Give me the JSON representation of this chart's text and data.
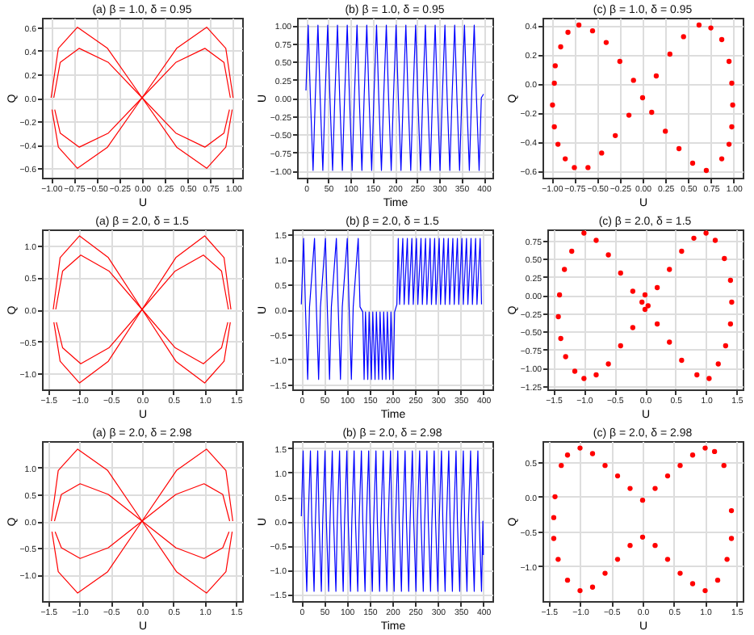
{
  "chart_data": [
    {
      "type": "line",
      "title": "(a) β = 1.0, δ = 0.95",
      "xlabel": "U",
      "ylabel": "Q",
      "grid": true,
      "xlim": [
        -1.1,
        1.1
      ],
      "ylim": [
        -0.68,
        0.68
      ],
      "xticks": [
        {
          "value": -1,
          "label": "−1.00"
        },
        {
          "value": -0.75,
          "label": "−0.75"
        },
        {
          "value": -0.5,
          "label": "−0.50"
        },
        {
          "value": -0.25,
          "label": "−0.25"
        },
        {
          "value": 0,
          "label": "0.00"
        },
        {
          "value": 0.25,
          "label": "0.25"
        },
        {
          "value": 0.5,
          "label": "0.50"
        },
        {
          "value": 0.75,
          "label": "0.75"
        },
        {
          "value": 1,
          "label": "1.00"
        }
      ],
      "yticks": [
        {
          "value": -0.6,
          "label": "−0.6"
        },
        {
          "value": -0.4,
          "label": "−0.4"
        },
        {
          "value": -0.2,
          "label": "−0.2"
        },
        {
          "value": 0,
          "label": "0.0"
        },
        0.2,
        0.4,
        0.6
      ],
      "series": [
        {
          "color": "#ff0000",
          "x": [
            -1.0,
            -0.92,
            -0.71,
            -0.38,
            0,
            0.38,
            0.71,
            0.92,
            1.0
          ],
          "values": [
            0,
            0.42,
            0.6,
            0.42,
            0,
            0.42,
            0.6,
            0.42,
            0
          ]
        },
        {
          "color": "#ff0000",
          "x": [
            -0.99,
            -0.92,
            -0.71,
            -0.38,
            0,
            0.38,
            0.71,
            0.92,
            0.99
          ],
          "values": [
            -0.1,
            -0.42,
            -0.6,
            -0.42,
            0,
            -0.42,
            -0.6,
            -0.42,
            -0.1
          ]
        },
        {
          "color": "#ff0000",
          "x": [
            -0.97,
            -0.9,
            -0.69,
            -0.37,
            0,
            0.37,
            0.69,
            0.9,
            0.97
          ],
          "values": [
            0,
            0.3,
            0.42,
            0.3,
            0,
            0.3,
            0.42,
            0.3,
            0
          ]
        },
        {
          "color": "#ff0000",
          "x": [
            -0.96,
            -0.9,
            -0.69,
            -0.37,
            0,
            0.37,
            0.69,
            0.9,
            0.96
          ],
          "values": [
            -0.1,
            -0.3,
            -0.42,
            -0.3,
            0,
            -0.3,
            -0.42,
            -0.3,
            -0.1
          ]
        }
      ]
    },
    {
      "type": "line",
      "title": "(b) β = 1.0, δ = 0.95",
      "xlabel": "Time",
      "ylabel": "U",
      "grid": true,
      "xlim": [
        -20,
        420
      ],
      "ylim": [
        -1.1,
        1.1
      ],
      "xticks": [
        0,
        50,
        100,
        150,
        200,
        250,
        300,
        350,
        400
      ],
      "yticks": [
        {
          "value": -1,
          "label": "−1.00"
        },
        {
          "value": -0.75,
          "label": "−0.75"
        },
        {
          "value": -0.5,
          "label": "−0.50"
        },
        {
          "value": -0.25,
          "label": "−0.25"
        },
        {
          "value": 0,
          "label": "0.00"
        },
        {
          "value": 0.25,
          "label": "0.25"
        },
        {
          "value": 0.5,
          "label": "0.50"
        },
        {
          "value": 0.75,
          "label": "0.75"
        },
        {
          "value": 1,
          "label": "1.00"
        }
      ],
      "series": [
        {
          "color": "#0000ff",
          "x": [
            0,
            5,
            10,
            16,
            21,
            27,
            32,
            38,
            43,
            49,
            54,
            60,
            65,
            71,
            76,
            82,
            87,
            93,
            98,
            104,
            109,
            115,
            120,
            126,
            131,
            137,
            142,
            148,
            153,
            159,
            164,
            170,
            175,
            181,
            186,
            192,
            197,
            203,
            208,
            214,
            219,
            225,
            230,
            236,
            241,
            247,
            252,
            258,
            263,
            269,
            274,
            280,
            285,
            291,
            296,
            302,
            307,
            313,
            318,
            324,
            329,
            335,
            340,
            346,
            351,
            357,
            362,
            368,
            373,
            379,
            384,
            390,
            395,
            400
          ],
          "values": [
            0.1,
            1,
            0,
            -1,
            0,
            1,
            0,
            -1,
            0,
            1,
            0,
            -1,
            0,
            1,
            0,
            -1,
            0,
            1,
            0,
            -1,
            0,
            1,
            0,
            -1,
            0,
            1,
            0,
            -1,
            0,
            1,
            0,
            -1,
            0,
            1,
            0,
            -1,
            0,
            1,
            0,
            -1,
            0,
            1,
            0,
            -1,
            0,
            1,
            0,
            -1,
            0,
            1,
            0,
            -1,
            0,
            1,
            0,
            -1,
            0,
            1,
            0,
            -1,
            0,
            1,
            0,
            -1,
            0,
            1,
            0,
            -1,
            0,
            1,
            0,
            -1,
            0,
            0.05
          ]
        }
      ]
    },
    {
      "type": "scatter",
      "title": "(c) β = 1.0, δ = 0.95",
      "xlabel": "U",
      "ylabel": "Q",
      "grid": true,
      "xlim": [
        -1.1,
        1.1
      ],
      "ylim": [
        -0.65,
        0.45
      ],
      "xticks": [
        {
          "value": -1,
          "label": "−1.00"
        },
        {
          "value": -0.75,
          "label": "−0.75"
        },
        {
          "value": -0.5,
          "label": "−0.50"
        },
        {
          "value": -0.25,
          "label": "−0.25"
        },
        {
          "value": 0,
          "label": "0.00"
        },
        {
          "value": 0.25,
          "label": "0.25"
        },
        {
          "value": 0.5,
          "label": "0.50"
        },
        {
          "value": 0.75,
          "label": "0.75"
        },
        {
          "value": 1,
          "label": "1.00"
        }
      ],
      "yticks": [
        {
          "value": -0.6,
          "label": "−0.6"
        },
        {
          "value": -0.4,
          "label": "−0.4"
        },
        {
          "value": -0.2,
          "label": "−0.2"
        },
        {
          "value": 0,
          "label": "0.0"
        },
        0.2,
        0.4
      ],
      "series": [
        {
          "color": "#ff0000",
          "x": [
            -0.97,
            -0.99,
            -0.97,
            -0.93,
            -0.85,
            -0.75,
            -0.6,
            -0.45,
            -0.3,
            -0.15,
            0,
            0.15,
            0.3,
            0.45,
            0.62,
            0.75,
            0.87,
            0.95,
            0.98,
            0.99,
            0.98,
            0.95,
            0.87,
            0.7,
            0.55,
            0.4,
            0.25,
            0.1,
            -0.1,
            -0.25,
            -0.4,
            -0.55,
            -0.7,
            -0.82,
            -0.9,
            -0.96
          ],
          "values": [
            0,
            -0.15,
            -0.3,
            -0.42,
            -0.52,
            -0.58,
            -0.58,
            -0.48,
            -0.36,
            -0.22,
            -0.1,
            0.05,
            0.2,
            0.32,
            0.4,
            0.38,
            0.3,
            0.15,
            0,
            -0.15,
            -0.3,
            -0.42,
            -0.52,
            -0.6,
            -0.55,
            -0.45,
            -0.33,
            -0.2,
            0.02,
            0.15,
            0.28,
            0.36,
            0.4,
            0.35,
            0.25,
            0.12
          ]
        }
      ]
    },
    {
      "type": "line",
      "title": "(a) β = 2.0, δ = 1.5",
      "xlabel": "U",
      "ylabel": "Q",
      "grid": true,
      "xlim": [
        -1.6,
        1.6
      ],
      "ylim": [
        -1.25,
        1.25
      ],
      "xticks": [
        {
          "value": -1.5,
          "label": "−1.5"
        },
        {
          "value": -1,
          "label": "−1.0"
        },
        {
          "value": -0.5,
          "label": "−0.5"
        },
        {
          "value": 0,
          "label": "0.0"
        },
        0.5,
        {
          "value": 1,
          "label": "1.0"
        },
        1.5
      ],
      "yticks": [
        {
          "value": -1,
          "label": "−1.0"
        },
        {
          "value": -0.5,
          "label": "−0.5"
        },
        {
          "value": 0,
          "label": "0.0"
        },
        0.5,
        {
          "value": 1,
          "label": "1.0"
        }
      ],
      "series": [
        {
          "color": "#ff0000",
          "x": [
            -1.42,
            -1.31,
            -1.0,
            -0.54,
            0,
            0.54,
            1.0,
            1.31,
            1.42
          ],
          "values": [
            0,
            0.81,
            1.15,
            0.81,
            0,
            0.81,
            1.15,
            0.81,
            0
          ]
        },
        {
          "color": "#ff0000",
          "x": [
            -1.41,
            -1.31,
            -1.0,
            -0.54,
            0,
            0.54,
            1.0,
            1.31,
            1.41
          ],
          "values": [
            -0.2,
            -0.81,
            -1.15,
            -0.81,
            0,
            -0.81,
            -1.15,
            -0.81,
            -0.2
          ]
        },
        {
          "color": "#ff0000",
          "x": [
            -1.38,
            -1.27,
            -0.98,
            -0.53,
            0,
            0.53,
            0.98,
            1.27,
            1.38
          ],
          "values": [
            0,
            0.6,
            0.85,
            0.6,
            0,
            0.6,
            0.85,
            0.6,
            0
          ]
        },
        {
          "color": "#ff0000",
          "x": [
            -1.37,
            -1.27,
            -0.98,
            -0.53,
            0,
            0.53,
            0.98,
            1.27,
            1.37
          ],
          "values": [
            -0.2,
            -0.6,
            -0.85,
            -0.6,
            0,
            -0.6,
            -0.85,
            -0.6,
            -0.2
          ]
        }
      ]
    },
    {
      "type": "line",
      "title": "(b) β = 2.0, δ = 1.5",
      "xlabel": "Time",
      "ylabel": "U",
      "grid": true,
      "xlim": [
        -20,
        420
      ],
      "ylim": [
        -1.6,
        1.6
      ],
      "xticks": [
        0,
        50,
        100,
        150,
        200,
        250,
        300,
        350,
        400
      ],
      "yticks": [
        {
          "value": -1.5,
          "label": "−1.5"
        },
        {
          "value": -1,
          "label": "−1.0"
        },
        {
          "value": -0.5,
          "label": "−0.5"
        },
        {
          "value": 0,
          "label": "0.0"
        },
        0.5,
        {
          "value": 1,
          "label": "1.0"
        },
        1.5
      ],
      "series": [
        {
          "color": "#0000ff",
          "x": [
            0,
            5,
            9,
            14,
            18,
            29,
            33,
            38,
            42,
            53,
            57,
            62,
            66,
            77,
            81,
            86,
            90,
            101,
            105,
            110,
            114,
            125,
            129,
            135,
            138,
            141,
            146,
            149,
            154,
            157,
            162,
            165,
            170,
            173,
            178,
            181,
            186,
            189,
            194,
            197,
            202,
            205,
            210,
            213,
            216,
            223,
            226,
            233,
            236,
            243,
            246,
            253,
            256,
            263,
            266,
            273,
            276,
            283,
            286,
            293,
            296,
            303,
            306,
            313,
            316,
            323,
            326,
            333,
            336,
            343,
            346,
            353,
            356,
            363,
            366,
            373,
            376,
            383,
            386,
            393,
            396
          ],
          "values": [
            0.1,
            1.42,
            0.05,
            -1.4,
            0.05,
            1.42,
            0.05,
            -1.4,
            0.05,
            1.42,
            0.05,
            -1.4,
            0.05,
            1.42,
            0.05,
            -1.4,
            0.05,
            1.42,
            0.05,
            -1.4,
            0.05,
            1.42,
            0.05,
            -0.05,
            -1.4,
            -0.05,
            -1.4,
            -0.05,
            -1.4,
            -0.05,
            -1.4,
            -0.05,
            -1.4,
            -0.05,
            -1.4,
            -0.05,
            -1.4,
            -0.05,
            -1.4,
            -0.05,
            -1.4,
            -0.05,
            0.1,
            1.42,
            0.1,
            1.42,
            0.1,
            1.42,
            0.1,
            1.42,
            0.1,
            1.42,
            0.1,
            1.42,
            0.1,
            1.42,
            0.1,
            1.42,
            0.1,
            1.42,
            0.1,
            1.42,
            0.1,
            1.42,
            0.1,
            1.42,
            0.1,
            1.42,
            0.1,
            1.42,
            0.1,
            1.42,
            0.1,
            1.42,
            0.1,
            1.42,
            0.1,
            1.42,
            0.1,
            1.42,
            0.1
          ]
        }
      ]
    },
    {
      "type": "scatter",
      "title": "(c) β = 2.0, δ = 1.5",
      "xlabel": "U",
      "ylabel": "Q",
      "grid": true,
      "xlim": [
        -1.6,
        1.6
      ],
      "ylim": [
        -1.3,
        0.9
      ],
      "xticks": [
        {
          "value": -1.5,
          "label": "−1.5"
        },
        {
          "value": -1,
          "label": "−1.0"
        },
        {
          "value": -0.5,
          "label": "−0.5"
        },
        {
          "value": 0,
          "label": "0.0"
        },
        0.5,
        {
          "value": 1,
          "label": "1.0"
        },
        1.5
      ],
      "yticks": [
        {
          "value": -1.25,
          "label": "−1.25"
        },
        {
          "value": -1,
          "label": "−1.00"
        },
        {
          "value": -0.75,
          "label": "−0.75"
        },
        {
          "value": -0.5,
          "label": "−0.50"
        },
        {
          "value": -0.25,
          "label": "−0.25"
        },
        {
          "value": 0,
          "label": "0.00"
        },
        0.25,
        {
          "value": 0.5,
          "label": "0.50"
        },
        0.75
      ],
      "series": [
        {
          "color": "#ff0000",
          "x": [
            -1.4,
            -1.42,
            -1.38,
            -1.3,
            -1.15,
            -1.0,
            -0.8,
            -0.6,
            -0.4,
            -0.2,
            0,
            0.2,
            0.4,
            0.6,
            0.8,
            1.0,
            1.15,
            1.3,
            1.4,
            1.42,
            1.4,
            1.32,
            1.2,
            1.05,
            0.85,
            0.6,
            0.4,
            0.2,
            -0.2,
            -0.4,
            -0.6,
            -0.8,
            -1.0,
            -1.2,
            -1.32,
            -0.05,
            0.05,
            0
          ],
          "values": [
            0,
            -0.3,
            -0.6,
            -0.85,
            -1.05,
            -1.15,
            -1.1,
            -0.95,
            -0.7,
            -0.45,
            -0.2,
            0.1,
            0.35,
            0.6,
            0.78,
            0.85,
            0.75,
            0.5,
            0.2,
            -0.1,
            -0.4,
            -0.7,
            -0.95,
            -1.15,
            -1.1,
            -0.9,
            -0.65,
            -0.4,
            0.05,
            0.3,
            0.55,
            0.75,
            0.85,
            0.6,
            0.35,
            -0.1,
            -0.15,
            0
          ]
        }
      ]
    },
    {
      "type": "line",
      "title": "(a) β = 2.0, δ = 2.98",
      "xlabel": "U",
      "ylabel": "Q",
      "grid": true,
      "xlim": [
        -1.6,
        1.6
      ],
      "ylim": [
        -1.5,
        1.5
      ],
      "xticks": [
        {
          "value": -1.5,
          "label": "−1.5"
        },
        {
          "value": -1,
          "label": "−1.0"
        },
        {
          "value": -0.5,
          "label": "−0.5"
        },
        {
          "value": 0,
          "label": "0.0"
        },
        0.5,
        {
          "value": 1,
          "label": "1.0"
        },
        1.5
      ],
      "yticks": [
        {
          "value": -1,
          "label": "−1.0"
        },
        {
          "value": -0.5,
          "label": "−0.5"
        },
        {
          "value": 0,
          "label": "0.0"
        },
        0.5,
        {
          "value": 1,
          "label": "1.0"
        }
      ],
      "series": [
        {
          "color": "#ff0000",
          "x": [
            -1.45,
            -1.34,
            -1.03,
            -0.55,
            0,
            0.55,
            1.03,
            1.34,
            1.45
          ],
          "values": [
            0,
            0.95,
            1.35,
            0.95,
            0,
            0.95,
            1.35,
            0.95,
            0
          ]
        },
        {
          "color": "#ff0000",
          "x": [
            -1.44,
            -1.34,
            -1.03,
            -0.55,
            0,
            0.55,
            1.03,
            1.34,
            1.44
          ],
          "values": [
            -0.2,
            -0.95,
            -1.35,
            -0.95,
            0,
            -0.95,
            -1.35,
            -0.95,
            -0.2
          ]
        },
        {
          "color": "#ff0000",
          "x": [
            -1.4,
            -1.29,
            -0.99,
            -0.54,
            0,
            0.54,
            0.99,
            1.29,
            1.4
          ],
          "values": [
            0,
            0.5,
            0.7,
            0.5,
            0,
            0.5,
            0.7,
            0.5,
            0
          ]
        },
        {
          "color": "#ff0000",
          "x": [
            -1.39,
            -1.29,
            -0.99,
            -0.54,
            0,
            0.54,
            0.99,
            1.29,
            1.39
          ],
          "values": [
            -0.2,
            -0.5,
            -0.7,
            -0.5,
            0,
            -0.5,
            -0.7,
            -0.5,
            -0.2
          ]
        }
      ]
    },
    {
      "type": "line",
      "title": "(b) β = 2.0, δ = 2.98",
      "xlabel": "Time",
      "ylabel": "U",
      "grid": true,
      "xlim": [
        -20,
        420
      ],
      "ylim": [
        -1.65,
        1.65
      ],
      "xticks": [
        0,
        50,
        100,
        150,
        200,
        250,
        300,
        350,
        400
      ],
      "yticks": [
        {
          "value": -1.5,
          "label": "−1.5"
        },
        {
          "value": -1,
          "label": "−1.0"
        },
        {
          "value": -0.5,
          "label": "−0.5"
        },
        {
          "value": 0,
          "label": "0.0"
        },
        0.5,
        {
          "value": 1,
          "label": "1.0"
        },
        1.5
      ],
      "series": [
        {
          "color": "#0000ff",
          "x": [
            0,
            4,
            7,
            12,
            15,
            20,
            23,
            28,
            31,
            36,
            39,
            44,
            47,
            52,
            55,
            60,
            63,
            68,
            71,
            76,
            79,
            84,
            87,
            92,
            95,
            100,
            103,
            108,
            111,
            116,
            119,
            124,
            127,
            132,
            135,
            140,
            143,
            148,
            151,
            156,
            159,
            164,
            167,
            172,
            175,
            180,
            183,
            188,
            191,
            196,
            199,
            204,
            207,
            212,
            215,
            220,
            223,
            228,
            231,
            236,
            239,
            244,
            247,
            252,
            255,
            260,
            263,
            268,
            271,
            276,
            279,
            284,
            287,
            292,
            295,
            300,
            303,
            308,
            311,
            316,
            319,
            324,
            327,
            332,
            335,
            340,
            343,
            348,
            351,
            356,
            359,
            364,
            367,
            372,
            375,
            380,
            383,
            388,
            391,
            396,
            399,
            400
          ],
          "values": [
            0.1,
            1.45,
            0,
            -1.45,
            0,
            1.45,
            0,
            -1.45,
            0,
            1.45,
            0,
            -1.45,
            0,
            1.45,
            0,
            -1.45,
            0,
            1.45,
            0,
            -1.45,
            0,
            1.45,
            0,
            -1.45,
            0,
            1.45,
            0,
            -1.45,
            0,
            1.45,
            0,
            -1.45,
            0,
            1.45,
            0,
            -1.45,
            0,
            1.45,
            0,
            -1.45,
            0,
            1.45,
            0,
            -1.45,
            0,
            1.45,
            0,
            -1.45,
            0,
            1.45,
            0,
            -1.45,
            0,
            1.45,
            0,
            -1.45,
            0,
            1.45,
            0,
            -1.45,
            0,
            1.45,
            0,
            -1.45,
            0,
            1.45,
            0,
            -1.45,
            0,
            1.45,
            0,
            -1.45,
            0,
            1.45,
            0,
            -1.45,
            0,
            1.45,
            0,
            -1.45,
            0,
            1.45,
            0,
            -1.45,
            0,
            1.45,
            0,
            -1.45,
            0,
            1.45,
            0,
            -1.45,
            0,
            1.45,
            0,
            -1.45,
            0,
            1.45,
            0,
            -1.45,
            0,
            -0.7
          ]
        }
      ]
    },
    {
      "type": "scatter",
      "title": "(c) β = 2.0, δ = 2.98",
      "xlabel": "U",
      "ylabel": "Q",
      "grid": true,
      "xlim": [
        -1.6,
        1.6
      ],
      "ylim": [
        -1.5,
        0.8
      ],
      "xticks": [
        {
          "value": -1.5,
          "label": "−1.5"
        },
        {
          "value": -1,
          "label": "−1.0"
        },
        {
          "value": -0.5,
          "label": "−0.5"
        },
        {
          "value": 0,
          "label": "0.0"
        },
        0.5,
        {
          "value": 1,
          "label": "1.0"
        },
        1.5
      ],
      "yticks": [
        {
          "value": -1,
          "label": "−1.0"
        },
        {
          "value": -0.5,
          "label": "−0.5"
        },
        {
          "value": 0,
          "label": "0.0"
        },
        0.5
      ],
      "series": [
        {
          "color": "#ff0000",
          "x": [
            -1.4,
            -1.3,
            -1.2,
            -1.0,
            -0.8,
            -0.6,
            -0.4,
            -0.2,
            0,
            0.2,
            0.4,
            0.6,
            0.8,
            1.0,
            1.15,
            1.3,
            -1.42,
            -1.42,
            -1.35,
            -1.2,
            -1.0,
            -0.8,
            -0.6,
            -0.4,
            -0.2,
            0,
            0.2,
            0.4,
            0.6,
            0.8,
            1.0,
            1.2,
            1.35,
            1.42,
            1.42
          ],
          "values": [
            0,
            0.45,
            0.6,
            0.7,
            0.62,
            0.45,
            0.3,
            0.12,
            -0.05,
            0.12,
            0.3,
            0.45,
            0.6,
            0.7,
            0.65,
            0.45,
            -0.3,
            -0.6,
            -0.9,
            -1.2,
            -1.35,
            -1.3,
            -1.1,
            -0.9,
            -0.7,
            -0.58,
            -0.7,
            -0.9,
            -1.1,
            -1.25,
            -1.35,
            -1.2,
            -0.9,
            -0.6,
            -0.2
          ]
        }
      ]
    }
  ]
}
